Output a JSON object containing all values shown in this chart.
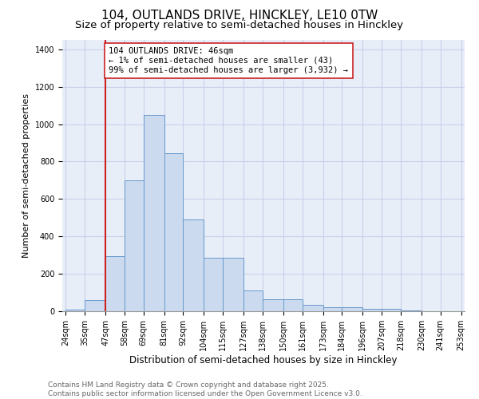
{
  "title1": "104, OUTLANDS DRIVE, HINCKLEY, LE10 0TW",
  "title2": "Size of property relative to semi-detached houses in Hinckley",
  "xlabel": "Distribution of semi-detached houses by size in Hinckley",
  "ylabel": "Number of semi-detached properties",
  "bar_edges": [
    24,
    35,
    47,
    58,
    69,
    81,
    92,
    104,
    115,
    127,
    138,
    150,
    161,
    173,
    184,
    196,
    207,
    218,
    230,
    241,
    253
  ],
  "bar_heights": [
    10,
    60,
    295,
    700,
    1050,
    845,
    490,
    285,
    285,
    110,
    65,
    65,
    35,
    20,
    20,
    12,
    12,
    5,
    0,
    0
  ],
  "bar_color": "#ccdaf0",
  "bar_edge_color": "#6699cc",
  "grid_color": "#c8d0e8",
  "bg_color": "#e8eef8",
  "annotation_text": "104 OUTLANDS DRIVE: 46sqm\n← 1% of semi-detached houses are smaller (43)\n99% of semi-detached houses are larger (3,932) →",
  "vline_x": 47,
  "vline_color": "#cc2222",
  "tick_labels": [
    "24sqm",
    "35sqm",
    "47sqm",
    "58sqm",
    "69sqm",
    "81sqm",
    "92sqm",
    "104sqm",
    "115sqm",
    "127sqm",
    "138sqm",
    "150sqm",
    "161sqm",
    "173sqm",
    "184sqm",
    "196sqm",
    "207sqm",
    "218sqm",
    "230sqm",
    "241sqm",
    "253sqm"
  ],
  "ylim": [
    0,
    1450
  ],
  "yticks": [
    0,
    200,
    400,
    600,
    800,
    1000,
    1200,
    1400
  ],
  "footer": "Contains HM Land Registry data © Crown copyright and database right 2025.\nContains public sector information licensed under the Open Government Licence v3.0.",
  "title1_fontsize": 11,
  "title2_fontsize": 9.5,
  "xlabel_fontsize": 8.5,
  "ylabel_fontsize": 8,
  "tick_fontsize": 7,
  "footer_fontsize": 6.5,
  "annot_fontsize": 7.5
}
